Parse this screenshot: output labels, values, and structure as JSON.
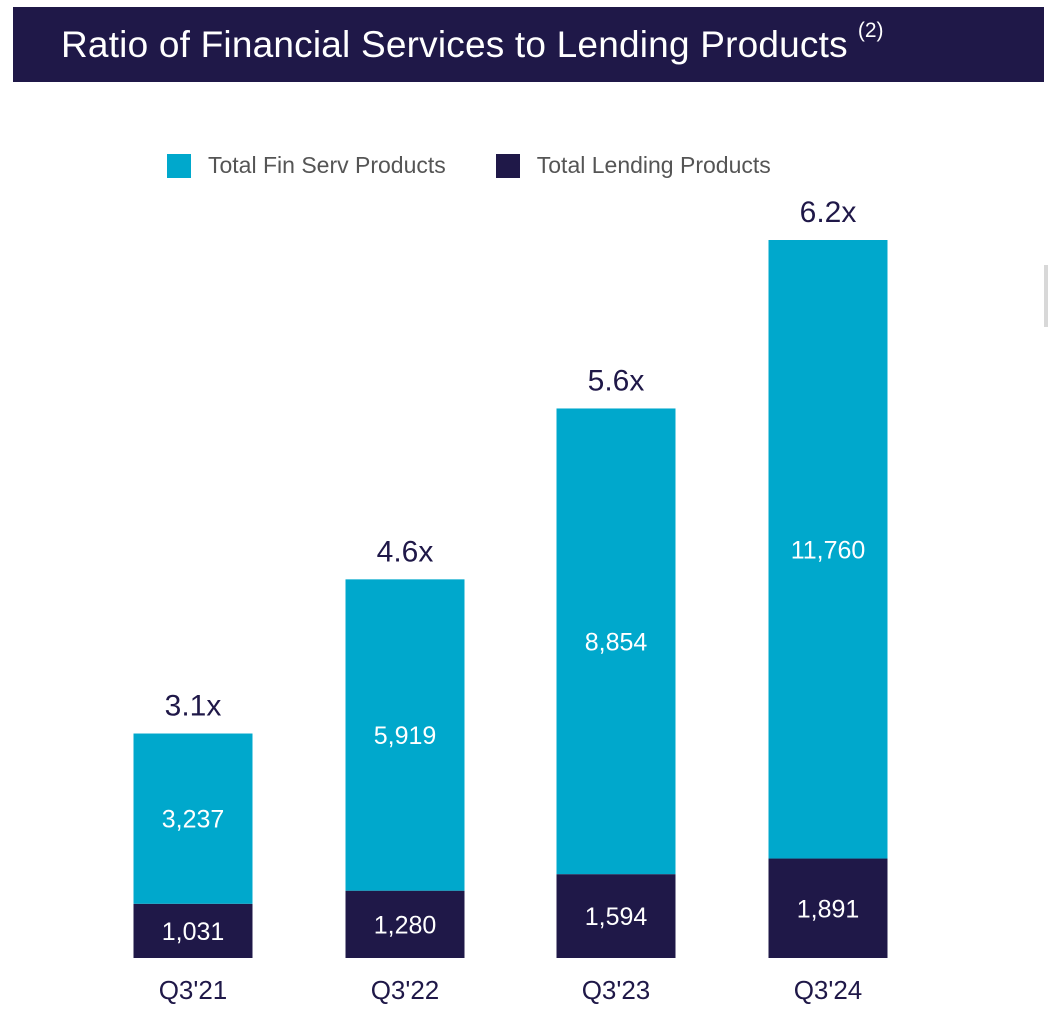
{
  "chart_data": {
    "type": "bar",
    "stacked": true,
    "title": "Ratio of Financial Services to Lending Products",
    "title_note": "(2)",
    "categories": [
      "Q3'21",
      "Q3'22",
      "Q3'23",
      "Q3'24"
    ],
    "series": [
      {
        "name": "Total Lending Products",
        "values": [
          1031,
          1280,
          1594,
          1891
        ],
        "labels": [
          "1,031",
          "1,280",
          "1,594",
          "1,891"
        ],
        "color": "#1f1848"
      },
      {
        "name": "Total Fin Serv Products",
        "values": [
          3237,
          5919,
          8854,
          11760
        ],
        "labels": [
          "3,237",
          "5,919",
          "8,854",
          "11,760"
        ],
        "color": "#00a8cc"
      }
    ],
    "ratios": [
      "3.1x",
      "4.6x",
      "5.6x",
      "6.2x"
    ],
    "legend": [
      {
        "name": "Total Fin Serv Products",
        "color": "#00a8cc"
      },
      {
        "name": "Total Lending Products",
        "color": "#1f1848"
      }
    ],
    "legend_position": "top",
    "grid": false,
    "ylim": [
      0,
      13651
    ]
  }
}
